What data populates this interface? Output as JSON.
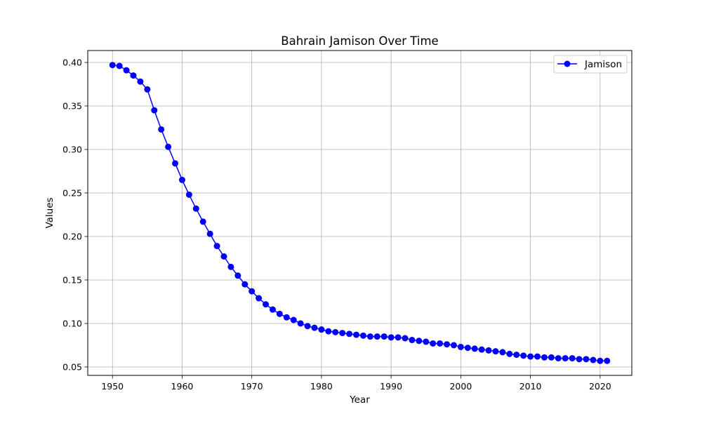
{
  "chart_data": {
    "type": "line",
    "title": "Bahrain Jamison Over Time",
    "xlabel": "Year",
    "ylabel": "Values",
    "xlim": [
      1946.45,
      2024.55
    ],
    "ylim": [
      0.0403,
      0.4137
    ],
    "xticks": [
      1950,
      1960,
      1970,
      1980,
      1990,
      2000,
      2010,
      2020
    ],
    "yticks": [
      0.05,
      0.1,
      0.15,
      0.2,
      0.25,
      0.3,
      0.35,
      0.4
    ],
    "ytick_labels": [
      "0.05",
      "0.10",
      "0.15",
      "0.20",
      "0.25",
      "0.30",
      "0.35",
      "0.40"
    ],
    "grid": true,
    "legend_position": "top-right",
    "colors": {
      "series": "#0000ff"
    },
    "series": [
      {
        "name": "Jamison",
        "marker": "circle",
        "x": [
          1950,
          1951,
          1952,
          1953,
          1954,
          1955,
          1956,
          1957,
          1958,
          1959,
          1960,
          1961,
          1962,
          1963,
          1964,
          1965,
          1966,
          1967,
          1968,
          1969,
          1970,
          1971,
          1972,
          1973,
          1974,
          1975,
          1976,
          1977,
          1978,
          1979,
          1980,
          1981,
          1982,
          1983,
          1984,
          1985,
          1986,
          1987,
          1988,
          1989,
          1990,
          1991,
          1992,
          1993,
          1994,
          1995,
          1996,
          1997,
          1998,
          1999,
          2000,
          2001,
          2002,
          2003,
          2004,
          2005,
          2006,
          2007,
          2008,
          2009,
          2010,
          2011,
          2012,
          2013,
          2014,
          2015,
          2016,
          2017,
          2018,
          2019,
          2020,
          2021
        ],
        "values": [
          0.397,
          0.396,
          0.391,
          0.385,
          0.378,
          0.369,
          0.345,
          0.323,
          0.303,
          0.284,
          0.265,
          0.248,
          0.232,
          0.217,
          0.203,
          0.189,
          0.177,
          0.165,
          0.155,
          0.145,
          0.137,
          0.129,
          0.122,
          0.116,
          0.111,
          0.107,
          0.104,
          0.1,
          0.097,
          0.095,
          0.093,
          0.091,
          0.09,
          0.089,
          0.088,
          0.087,
          0.086,
          0.085,
          0.085,
          0.085,
          0.084,
          0.084,
          0.083,
          0.081,
          0.08,
          0.079,
          0.077,
          0.077,
          0.076,
          0.075,
          0.073,
          0.072,
          0.071,
          0.07,
          0.069,
          0.068,
          0.067,
          0.065,
          0.064,
          0.063,
          0.062,
          0.062,
          0.061,
          0.061,
          0.06,
          0.06,
          0.06,
          0.059,
          0.059,
          0.058,
          0.057,
          0.057
        ]
      }
    ]
  }
}
